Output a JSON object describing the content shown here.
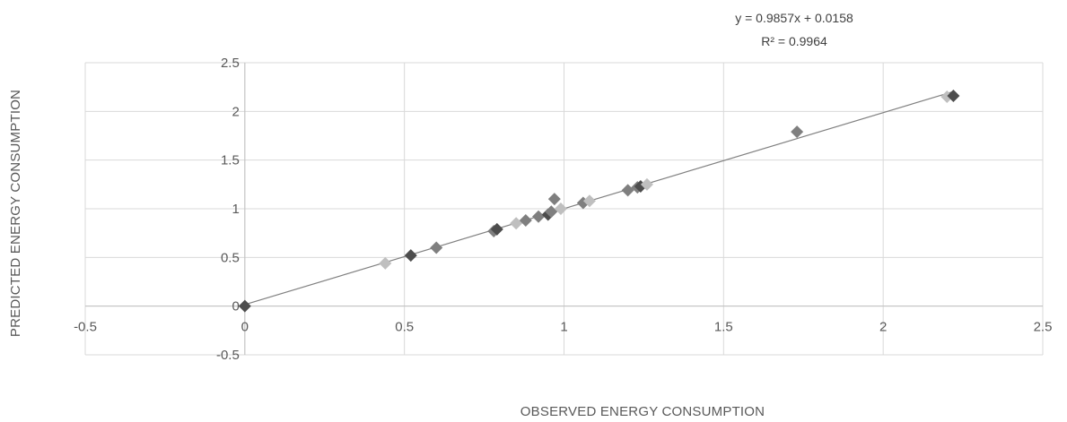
{
  "chart_data": {
    "type": "scatter",
    "xlabel": "OBSERVED ENERGY CONSUMPTION",
    "ylabel": "PREDICTED ENERGY CONSUMPTION",
    "xlim": [
      -0.5,
      2.5
    ],
    "ylim": [
      -0.5,
      2.5
    ],
    "xticks": [
      -0.5,
      0,
      0.5,
      1,
      1.5,
      2,
      2.5
    ],
    "xtick_labels": [
      "-0.5",
      "0",
      "0.5",
      "1",
      "1.5",
      "2",
      "2.5"
    ],
    "yticks": [
      -0.5,
      0,
      0.5,
      1,
      1.5,
      2,
      2.5
    ],
    "ytick_labels": [
      "-0.5",
      "0",
      "0.5",
      "1",
      "1.5",
      "2",
      "2.5"
    ],
    "grid": true,
    "trendline": {
      "slope": 0.9857,
      "intercept": 0.0158,
      "x_range": [
        0,
        2.22
      ],
      "equation_label": "y = 0.9857x + 0.0158",
      "r2_label": "R² = 0.9964",
      "color": "#808080"
    },
    "marker_colors": {
      "dark": "#4d4d4d",
      "mid": "#7f7f7f",
      "light": "#bfbfbf"
    },
    "points": [
      {
        "x": 0.0,
        "y": 0.0,
        "shade": "dark"
      },
      {
        "x": 0.44,
        "y": 0.44,
        "shade": "light"
      },
      {
        "x": 0.52,
        "y": 0.52,
        "shade": "dark"
      },
      {
        "x": 0.6,
        "y": 0.6,
        "shade": "mid"
      },
      {
        "x": 0.78,
        "y": 0.77,
        "shade": "mid"
      },
      {
        "x": 0.79,
        "y": 0.79,
        "shade": "dark"
      },
      {
        "x": 0.85,
        "y": 0.85,
        "shade": "light"
      },
      {
        "x": 0.88,
        "y": 0.88,
        "shade": "mid"
      },
      {
        "x": 0.92,
        "y": 0.92,
        "shade": "mid"
      },
      {
        "x": 0.95,
        "y": 0.94,
        "shade": "dark"
      },
      {
        "x": 0.96,
        "y": 0.97,
        "shade": "mid"
      },
      {
        "x": 0.97,
        "y": 1.1,
        "shade": "mid"
      },
      {
        "x": 0.99,
        "y": 1.0,
        "shade": "light"
      },
      {
        "x": 1.06,
        "y": 1.06,
        "shade": "mid"
      },
      {
        "x": 1.08,
        "y": 1.08,
        "shade": "light"
      },
      {
        "x": 1.2,
        "y": 1.19,
        "shade": "mid"
      },
      {
        "x": 1.23,
        "y": 1.22,
        "shade": "mid"
      },
      {
        "x": 1.24,
        "y": 1.23,
        "shade": "dark"
      },
      {
        "x": 1.26,
        "y": 1.25,
        "shade": "light"
      },
      {
        "x": 1.73,
        "y": 1.79,
        "shade": "mid"
      },
      {
        "x": 2.2,
        "y": 2.15,
        "shade": "light"
      },
      {
        "x": 2.22,
        "y": 2.16,
        "shade": "dark"
      }
    ]
  }
}
